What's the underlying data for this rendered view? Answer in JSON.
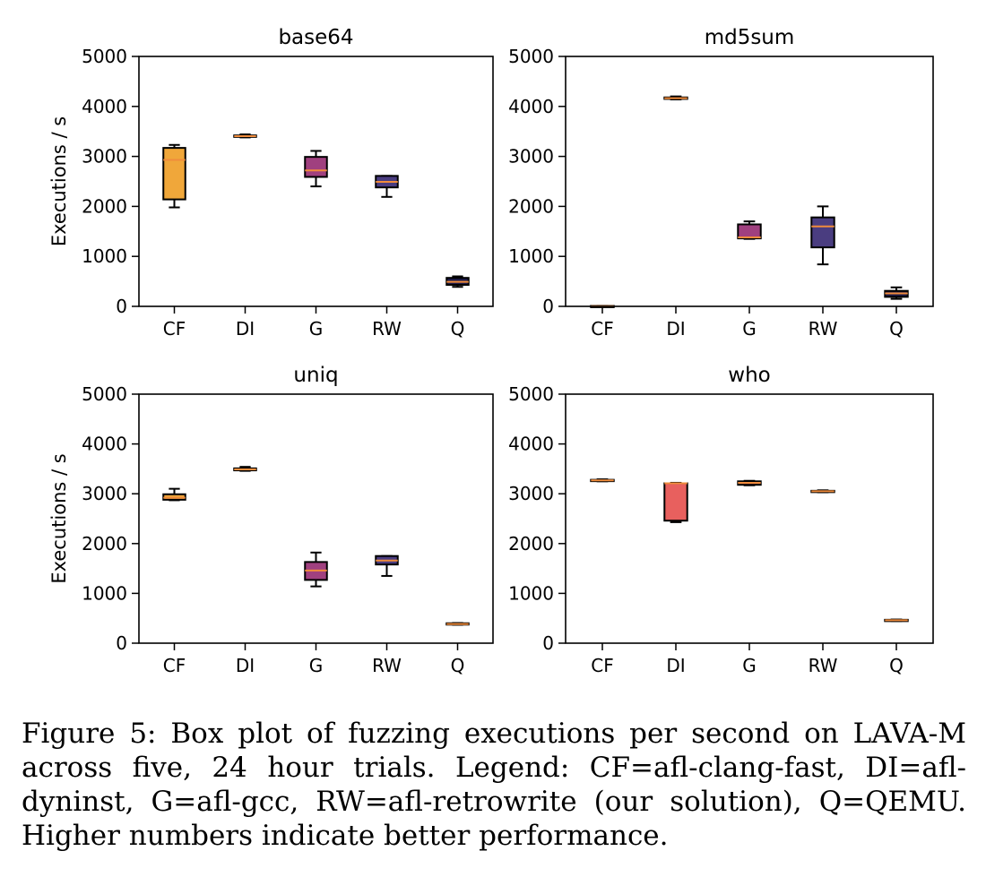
{
  "chart_data": [
    {
      "type": "box",
      "title": "base64",
      "ylabel": "Executions / s",
      "ylim": [
        0,
        5000
      ],
      "yticks": [
        "0",
        "1000",
        "2000",
        "3000",
        "4000",
        "5000"
      ],
      "categories": [
        "CF",
        "DI",
        "G",
        "RW",
        "Q"
      ],
      "boxes": [
        {
          "whislo": 1980,
          "q1": 2140,
          "med": 2930,
          "q3": 3170,
          "whishi": 3230,
          "color": "#f0a73a"
        },
        {
          "whislo": 3380,
          "q1": 3390,
          "med": 3405,
          "q3": 3420,
          "whishi": 3440,
          "color": "#f0a73a"
        },
        {
          "whislo": 2400,
          "q1": 2590,
          "med": 2720,
          "q3": 2990,
          "whishi": 3110,
          "color": "#a0407f"
        },
        {
          "whislo": 2190,
          "q1": 2380,
          "med": 2490,
          "q3": 2610,
          "whishi": 2610,
          "color": "#4a3d80"
        },
        {
          "whislo": 390,
          "q1": 430,
          "med": 490,
          "q3": 570,
          "whishi": 600,
          "color": "#1f1c4a"
        }
      ]
    },
    {
      "type": "box",
      "title": "md5sum",
      "ylabel": "",
      "ylim": [
        0,
        5000
      ],
      "yticks": [
        "0",
        "1000",
        "2000",
        "3000",
        "4000",
        "5000"
      ],
      "categories": [
        "CF",
        "DI",
        "G",
        "RW",
        "Q"
      ],
      "boxes": [
        {
          "whislo": 0,
          "q1": 0,
          "med": 5,
          "q3": 10,
          "whishi": 10,
          "color": "#f0a73a"
        },
        {
          "whislo": 4140,
          "q1": 4150,
          "med": 4165,
          "q3": 4180,
          "whishi": 4200,
          "color": "#f0a73a"
        },
        {
          "whislo": 1350,
          "q1": 1360,
          "med": 1380,
          "q3": 1640,
          "whishi": 1700,
          "color": "#a0407f"
        },
        {
          "whislo": 840,
          "q1": 1180,
          "med": 1600,
          "q3": 1780,
          "whishi": 2000,
          "color": "#4a3d80"
        },
        {
          "whislo": 150,
          "q1": 190,
          "med": 260,
          "q3": 310,
          "whishi": 380,
          "color": "#1f1c4a"
        }
      ]
    },
    {
      "type": "box",
      "title": "uniq",
      "ylabel": "Executions / s",
      "ylim": [
        0,
        5000
      ],
      "yticks": [
        "0",
        "1000",
        "2000",
        "3000",
        "4000",
        "5000"
      ],
      "categories": [
        "CF",
        "DI",
        "G",
        "RW",
        "Q"
      ],
      "boxes": [
        {
          "whislo": 2870,
          "q1": 2880,
          "med": 2920,
          "q3": 2990,
          "whishi": 3100,
          "color": "#f0a73a"
        },
        {
          "whislo": 3460,
          "q1": 3470,
          "med": 3490,
          "q3": 3510,
          "whishi": 3540,
          "color": "#f0a73a"
        },
        {
          "whislo": 1140,
          "q1": 1270,
          "med": 1460,
          "q3": 1630,
          "whishi": 1820,
          "color": "#a0407f"
        },
        {
          "whislo": 1350,
          "q1": 1580,
          "med": 1660,
          "q3": 1750,
          "whishi": 1750,
          "color": "#4a3d80"
        },
        {
          "whislo": 370,
          "q1": 375,
          "med": 385,
          "q3": 400,
          "whishi": 405,
          "color": "#1f1c4a"
        }
      ]
    },
    {
      "type": "box",
      "title": "who",
      "ylabel": "",
      "ylim": [
        0,
        5000
      ],
      "yticks": [
        "0",
        "1000",
        "2000",
        "3000",
        "4000",
        "5000"
      ],
      "categories": [
        "CF",
        "DI",
        "G",
        "RW",
        "Q"
      ],
      "boxes": [
        {
          "whislo": 3250,
          "q1": 3260,
          "med": 3270,
          "q3": 3280,
          "whishi": 3290,
          "color": "#f0a73a"
        },
        {
          "whislo": 2430,
          "q1": 2460,
          "med": 3210,
          "q3": 3210,
          "whishi": 3220,
          "color": "#e8605e"
        },
        {
          "whislo": 3170,
          "q1": 3180,
          "med": 3220,
          "q3": 3250,
          "whishi": 3260,
          "color": "#e8605e"
        },
        {
          "whislo": 3030,
          "q1": 3035,
          "med": 3050,
          "q3": 3060,
          "whishi": 3070,
          "color": "#e8605e"
        },
        {
          "whislo": 445,
          "q1": 450,
          "med": 460,
          "q3": 470,
          "whishi": 475,
          "color": "#e8605e"
        }
      ]
    }
  ],
  "caption": "Figure 5: Box plot of fuzzing executions per second on LAVA-M across five, 24 hour trials. Legend: CF=afl-clang-fast, DI=afl-dyninst, G=afl-gcc, RW=afl-retrowrite (our solution), Q=QEMU. Higher numbers indicate better performance.",
  "colors": {
    "median": "#f08c3c",
    "axis": "#000000"
  }
}
